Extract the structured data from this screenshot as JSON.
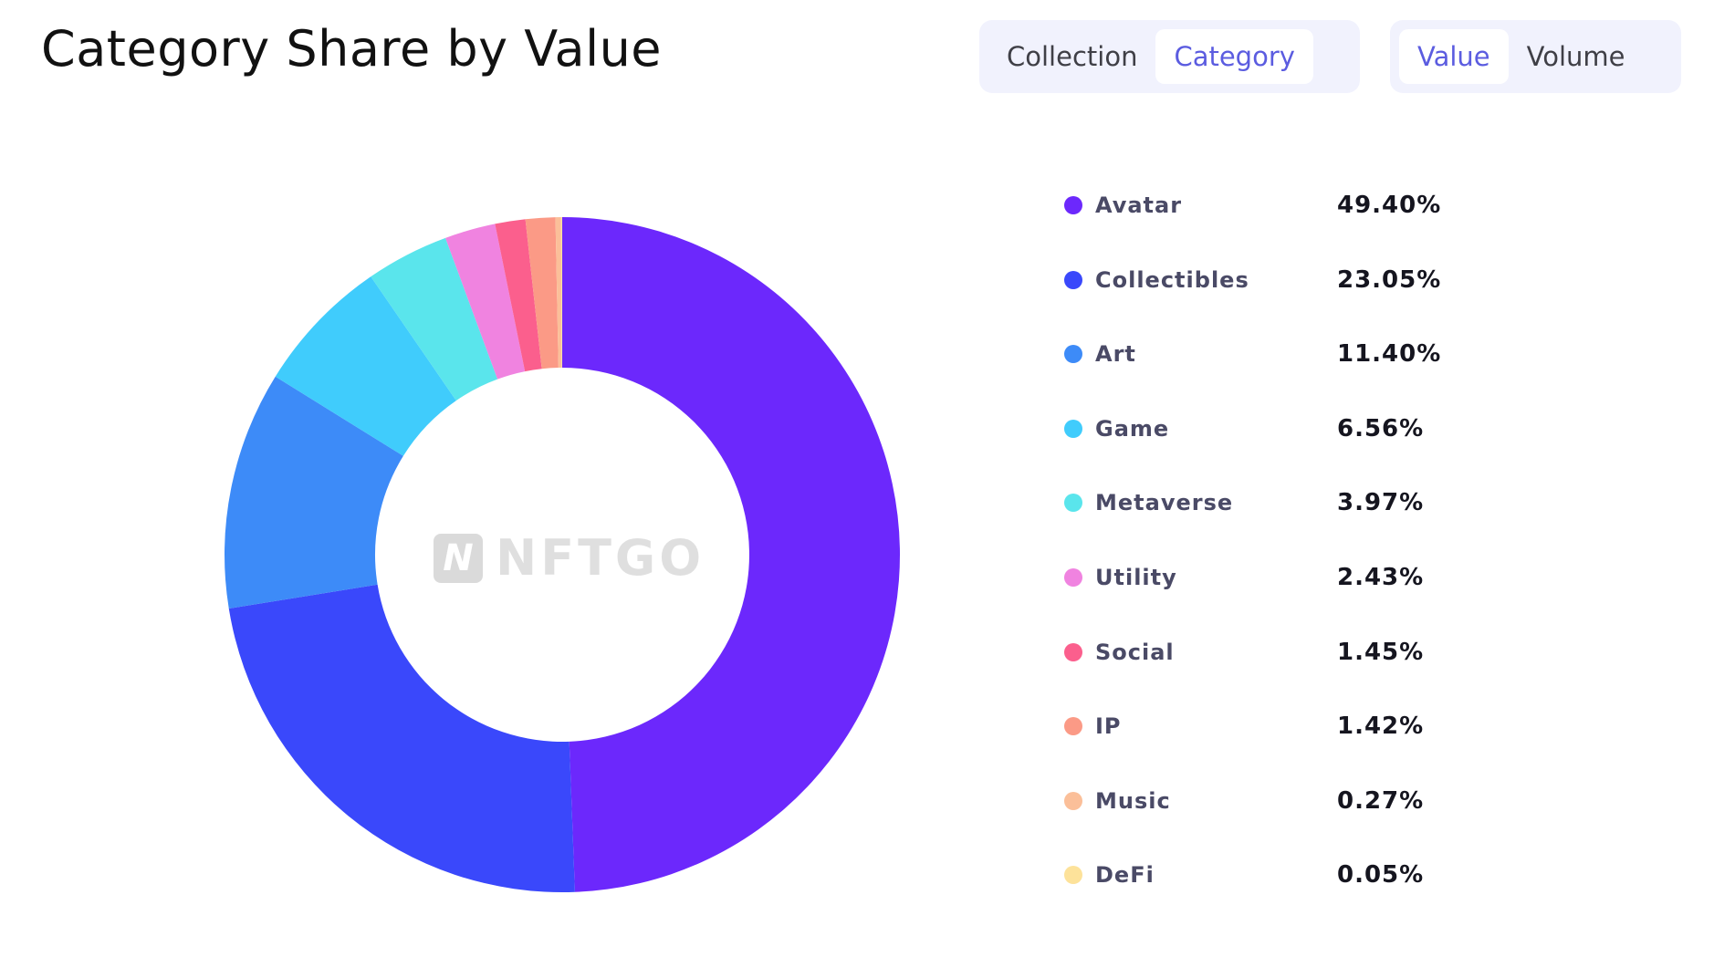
{
  "header": {
    "title": "Category Share by Value"
  },
  "toggles": {
    "group_type": [
      {
        "label": "Collection",
        "active": false
      },
      {
        "label": "Category",
        "active": true
      }
    ],
    "group_metric": [
      {
        "label": "Value",
        "active": true
      },
      {
        "label": "Volume",
        "active": false
      }
    ]
  },
  "watermark": {
    "text": "NFTGO",
    "logo": "N"
  },
  "chart_data": {
    "type": "pie",
    "subtype": "donut",
    "title": "Category Share by Value",
    "unit": "%",
    "legend_position": "right",
    "categories": [
      "Avatar",
      "Collectibles",
      "Art",
      "Game",
      "Metaverse",
      "Utility",
      "Social",
      "IP",
      "Music",
      "DeFi"
    ],
    "values": [
      49.4,
      23.05,
      11.4,
      6.56,
      3.97,
      2.43,
      1.45,
      1.42,
      0.27,
      0.05
    ],
    "labels": [
      "49.40%",
      "23.05%",
      "11.40%",
      "6.56%",
      "3.97%",
      "2.43%",
      "1.45%",
      "1.42%",
      "0.27%",
      "0.05%"
    ],
    "colors": [
      "#6c28fc",
      "#3a48fb",
      "#3d8bf8",
      "#40ccfc",
      "#5ae5ec",
      "#f083e0",
      "#fb5f8d",
      "#fb9a86",
      "#fbbf99",
      "#fde29a"
    ]
  }
}
